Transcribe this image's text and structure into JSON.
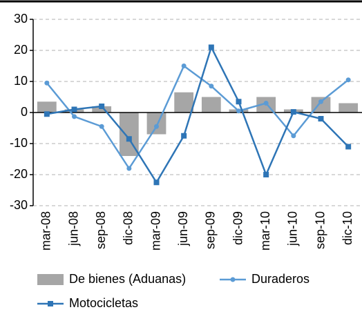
{
  "chart_data": {
    "type": "bar-line",
    "categories": [
      "mar-08",
      "jun-08",
      "sep-08",
      "dic-08",
      "mar-09",
      "jun-09",
      "sep-09",
      "dic-09",
      "mar-10",
      "jun-10",
      "sep-10",
      "dic-10"
    ],
    "series": [
      {
        "name": "De bienes (Aduanas)",
        "type": "bar",
        "color": "#a6a6a6",
        "values": [
          3.5,
          1,
          2,
          -14,
          -7,
          6.5,
          5,
          1,
          5,
          1,
          5,
          3
        ]
      },
      {
        "name": "Duraderos",
        "type": "line",
        "marker": "circle",
        "color": "#5b9bd5",
        "values": [
          9.5,
          -1.3,
          -4.5,
          -18,
          -4.5,
          15,
          8.5,
          0.5,
          3,
          -7.5,
          3.5,
          10.5
        ]
      },
      {
        "name": "Motocicletas",
        "type": "line",
        "marker": "square",
        "color": "#2e75b6",
        "values": [
          -0.5,
          1,
          2,
          -8.5,
          -22.5,
          -7.5,
          21,
          3.5,
          -20,
          0.2,
          -2,
          -11
        ]
      }
    ],
    "ylim": [
      -30,
      30
    ],
    "yticks": [
      -30,
      -20,
      -10,
      0,
      10,
      20,
      30
    ],
    "grid": true
  }
}
